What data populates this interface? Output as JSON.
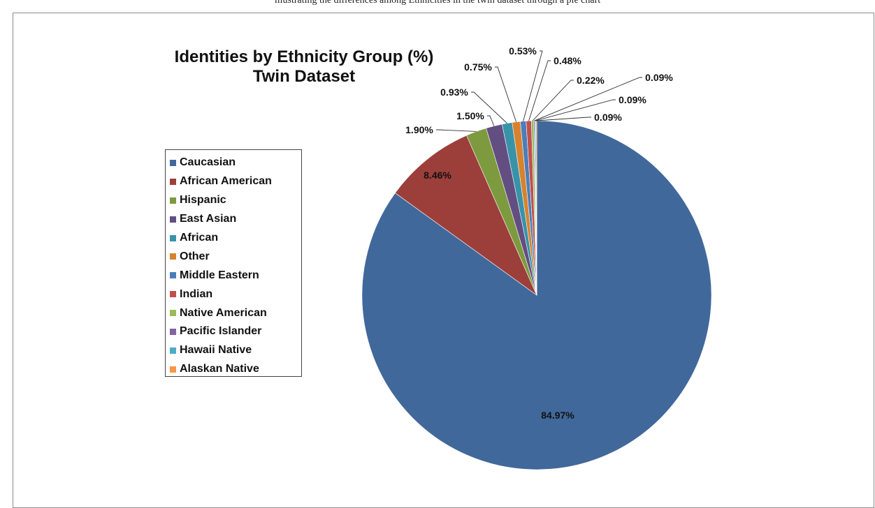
{
  "page": {
    "top_text": "illustrating the differences among Ethnicities in the twin dataset through a pie chart"
  },
  "chart_data": {
    "type": "pie",
    "title": "Identities by Ethnicity Group (%)",
    "subtitle": "Twin Dataset",
    "legend_position": "left",
    "start_angle": "12 o'clock, clockwise",
    "slices": [
      {
        "name": "Caucasian",
        "value": 84.97,
        "label": "84.97%",
        "color": "#41689b"
      },
      {
        "name": "African American",
        "value": 8.46,
        "label": "8.46%",
        "color": "#9c3f3b"
      },
      {
        "name": "Hispanic",
        "value": 1.9,
        "label": "1.90%",
        "color": "#7d9a3e"
      },
      {
        "name": "East Asian",
        "value": 1.5,
        "label": "1.50%",
        "color": "#634e82"
      },
      {
        "name": "African",
        "value": 0.93,
        "label": "0.93%",
        "color": "#3893a8"
      },
      {
        "name": "Other",
        "value": 0.75,
        "label": "0.75%",
        "color": "#d8822f"
      },
      {
        "name": "Middle Eastern",
        "value": 0.53,
        "label": "0.53%",
        "color": "#4a7ebb"
      },
      {
        "name": "Indian",
        "value": 0.48,
        "label": "0.48%",
        "color": "#c0504d"
      },
      {
        "name": "Native American",
        "value": 0.22,
        "label": "0.22%",
        "color": "#9bbb59"
      },
      {
        "name": "Pacific Islander",
        "value": 0.09,
        "label": "0.09%",
        "color": "#8064a2"
      },
      {
        "name": "Hawaii Native",
        "value": 0.09,
        "label": "0.09%",
        "color": "#4bacc6"
      },
      {
        "name": "Alaskan Native",
        "value": 0.09,
        "label": "0.09%",
        "color": "#f79646"
      }
    ]
  }
}
